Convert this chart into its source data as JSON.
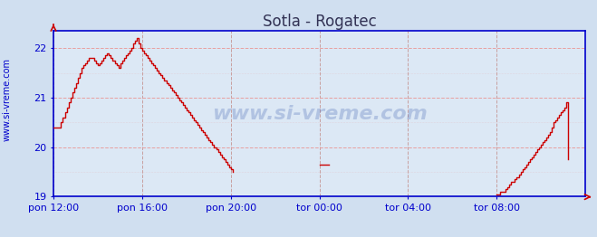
{
  "title": "Sotla - Rogatec",
  "ylabel_text": "www.si-vreme.com",
  "legend_color": "#cc0000",
  "bg_color": "#d0dff0",
  "plot_bg_color": "#dce8f5",
  "line_color": "#cc0000",
  "axis_color": "#0000cc",
  "grid_color_h": "#e8a0a0",
  "grid_color_v": "#c8a0a0",
  "xlim_min": 0,
  "xlim_max": 288,
  "ylim": [
    19.0,
    22.35
  ],
  "yticks": [
    19,
    20,
    21,
    22
  ],
  "xtick_labels": [
    "pon 12:00",
    "pon 16:00",
    "pon 20:00",
    "tor 00:00",
    "tor 04:00",
    "tor 08:00"
  ],
  "xtick_positions": [
    0,
    48,
    96,
    144,
    192,
    240
  ],
  "watermark": "www.si-vreme.com",
  "title_color": "#333355",
  "title_fontsize": 12,
  "data_y": [
    20.4,
    20.4,
    20.4,
    20.4,
    20.5,
    20.6,
    20.7,
    20.8,
    20.9,
    21.0,
    21.1,
    21.2,
    21.3,
    21.4,
    21.5,
    21.6,
    21.65,
    21.7,
    21.75,
    21.8,
    21.8,
    21.8,
    21.75,
    21.7,
    21.65,
    21.7,
    21.75,
    21.8,
    21.85,
    21.9,
    21.85,
    21.8,
    21.75,
    21.7,
    21.65,
    21.6,
    21.7,
    21.75,
    21.8,
    21.85,
    21.9,
    21.95,
    22.0,
    22.1,
    22.15,
    22.2,
    22.1,
    22.0,
    21.95,
    21.9,
    21.85,
    21.8,
    21.75,
    21.7,
    21.65,
    21.6,
    21.55,
    21.5,
    21.45,
    21.4,
    21.35,
    21.3,
    21.25,
    21.2,
    21.15,
    21.1,
    21.05,
    21.0,
    20.95,
    20.9,
    20.85,
    20.8,
    20.75,
    20.7,
    20.65,
    20.6,
    20.55,
    20.5,
    20.45,
    20.4,
    20.35,
    20.3,
    20.25,
    20.2,
    20.15,
    20.1,
    20.05,
    20.0,
    19.95,
    19.9,
    19.85,
    19.8,
    19.75,
    19.7,
    19.65,
    19.6,
    19.55,
    19.5,
    null,
    null,
    null,
    null,
    null,
    null,
    null,
    null,
    null,
    null,
    null,
    null,
    null,
    null,
    null,
    null,
    null,
    null,
    null,
    null,
    null,
    null,
    null,
    null,
    null,
    null,
    null,
    null,
    null,
    null,
    null,
    null,
    null,
    null,
    null,
    null,
    null,
    null,
    null,
    null,
    null,
    null,
    null,
    null,
    null,
    null,
    19.65,
    19.65,
    19.65,
    19.65,
    19.65,
    19.65,
    null,
    null,
    null,
    null,
    null,
    null,
    null,
    null,
    null,
    null,
    null,
    null,
    null,
    null,
    null,
    null,
    null,
    null,
    null,
    null,
    null,
    null,
    null,
    null,
    null,
    null,
    null,
    null,
    null,
    null,
    null,
    null,
    null,
    null,
    null,
    null,
    null,
    null,
    null,
    null,
    null,
    null,
    null,
    null,
    null,
    null,
    null,
    null,
    null,
    null,
    null,
    null,
    null,
    null,
    null,
    null,
    null,
    null,
    null,
    null,
    null,
    null,
    null,
    null,
    null,
    null,
    null,
    null,
    null,
    null,
    null,
    null,
    null,
    null,
    null,
    null,
    null,
    null,
    null,
    null,
    null,
    null,
    null,
    null,
    null,
    null,
    null,
    null,
    null,
    null,
    19.05,
    19.05,
    19.1,
    19.1,
    19.1,
    19.15,
    19.2,
    19.25,
    19.3,
    19.3,
    19.35,
    19.4,
    19.45,
    19.5,
    19.55,
    19.6,
    19.65,
    19.7,
    19.75,
    19.8,
    19.85,
    19.9,
    19.95,
    20.0,
    20.05,
    20.1,
    20.15,
    20.2,
    20.25,
    20.3,
    20.4,
    20.5,
    20.55,
    20.6,
    20.65,
    20.7,
    20.75,
    20.8,
    20.9,
    19.75
  ]
}
